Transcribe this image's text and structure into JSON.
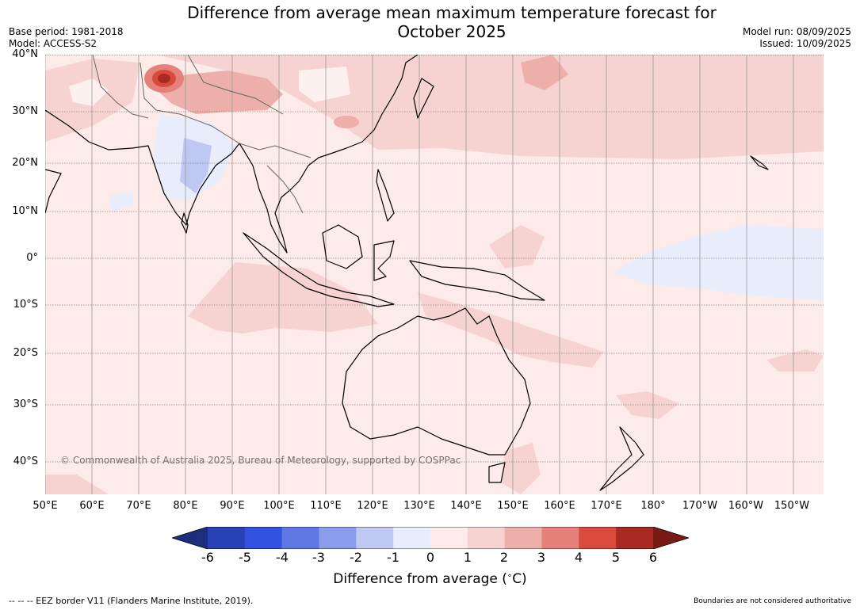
{
  "title_line1": "Difference from average mean maximum temperature forecast for",
  "title_line2": "October 2025",
  "base_period": "Base period: 1981-2018",
  "model": "Model: ACCESS-S2",
  "model_run": "Model run: 08/09/2025",
  "issued": "Issued: 10/09/2025",
  "copyright": "© Commonwealth of Australia 2025, Bureau of Meteorology, supported by COSPPac",
  "lat_labels": [
    "40°N",
    "30°N",
    "20°N",
    "10°N",
    "0°",
    "10°S",
    "20°S",
    "30°S",
    "40°S"
  ],
  "lon_labels": [
    "50°E",
    "60°E",
    "70°E",
    "80°E",
    "90°E",
    "100°E",
    "110°E",
    "120°E",
    "130°E",
    "140°E",
    "150°E",
    "160°E",
    "170°E",
    "180°",
    "170°W",
    "160°W",
    "150°W"
  ],
  "colorbar": {
    "ticks": [
      "-6",
      "-5",
      "-4",
      "-3",
      "-2",
      "-1",
      "0",
      "1",
      "2",
      "3",
      "4",
      "5",
      "6"
    ],
    "colors": [
      "#1d2e7e",
      "#2841b5",
      "#3452e0",
      "#5f77e3",
      "#8a9deb",
      "#bfc8f3",
      "#e9ecfb",
      "#fcebe8",
      "#f6d3d0",
      "#edafaa",
      "#e5817a",
      "#d94a3d",
      "#a92a23",
      "#7a1a16"
    ],
    "title": "Difference from average ($^\\circ$C)"
  },
  "footer_left": "--  --  -- EEZ border V11 (Flanders Marine Institute, 2019).",
  "footer_right": "Boundaries are not considered authoritative"
}
